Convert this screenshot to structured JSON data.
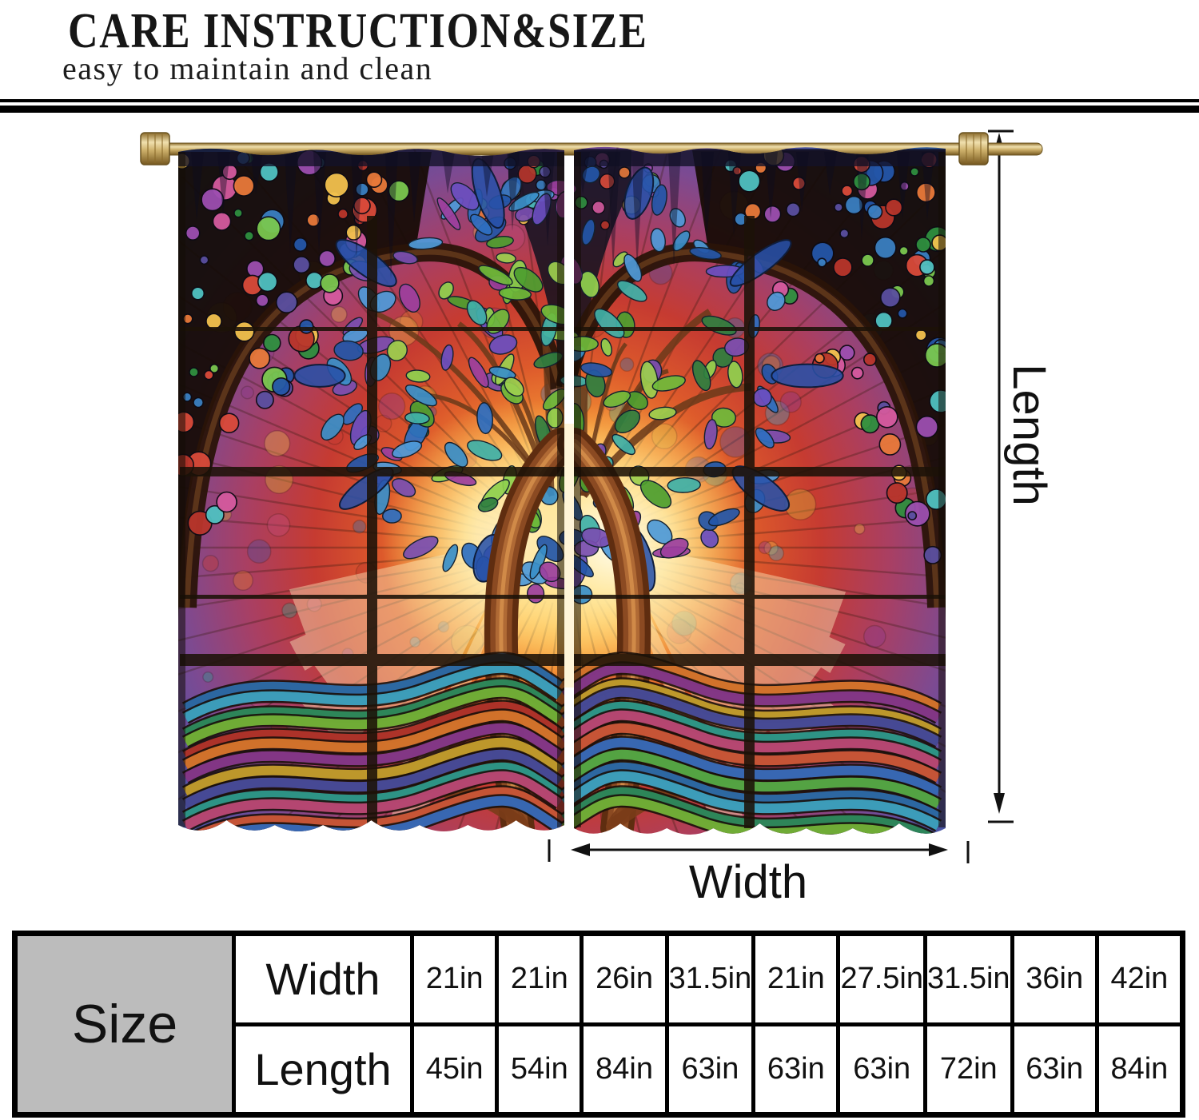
{
  "header": {
    "title": "CARE INSTRUCTION&SIZE",
    "subtitle": "easy to maintain and clean"
  },
  "diagram": {
    "length_label": "Length",
    "width_label": "Width",
    "illustration": "two rod-pocket curtain panels on a brass rod, stained-glass tree-of-life artwork"
  },
  "size_table": {
    "corner_label": "Size",
    "width_header": "Width",
    "length_header": "Length",
    "width_values": [
      "21in",
      "21in",
      "26in",
      "31.5in",
      "21in",
      "27.5in",
      "31.5in",
      "36in",
      "42in"
    ],
    "length_values": [
      "45in",
      "54in",
      "84in",
      "63in",
      "63in",
      "63in",
      "72in",
      "63in",
      "84in"
    ]
  },
  "colors": {
    "rule_black": "#000000",
    "arrow_black": "#111111",
    "table_corner_gray": "#bcbcbc",
    "rod_gold": "#cdb06a",
    "glass_warm_center": "#ffe089",
    "glass_red": "#c63b31",
    "glass_blue": "#3160a8",
    "leaf_green": "#6fba3a",
    "leaf_blue": "#2e6fc1"
  }
}
